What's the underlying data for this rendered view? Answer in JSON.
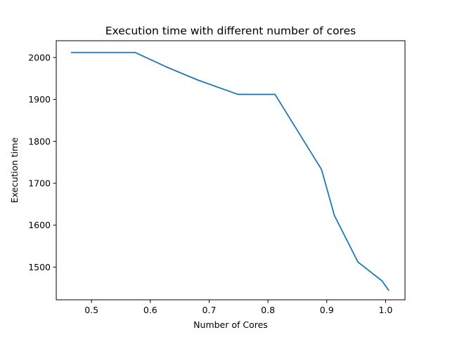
{
  "chart_data": {
    "type": "line",
    "title": "Execution time with different number of cores",
    "xlabel": "Number of Cores",
    "ylabel": "Execution time",
    "xlim": [
      0.44,
      1.033
    ],
    "ylim": [
      1422,
      2040
    ],
    "grid": false,
    "legend": "none",
    "xticks": [
      {
        "value": 0.5,
        "label": "0.5"
      },
      {
        "value": 0.6,
        "label": "0.6"
      },
      {
        "value": 0.7,
        "label": "0.7"
      },
      {
        "value": 0.8,
        "label": "0.8"
      },
      {
        "value": 0.9,
        "label": "0.9"
      },
      {
        "value": 1.0,
        "label": "1.0"
      }
    ],
    "yticks": [
      {
        "value": 1500,
        "label": "1500"
      },
      {
        "value": 1600,
        "label": "1600"
      },
      {
        "value": 1700,
        "label": "1700"
      },
      {
        "value": 1800,
        "label": "1800"
      },
      {
        "value": 1900,
        "label": "1900"
      },
      {
        "value": 2000,
        "label": "2000"
      }
    ],
    "series": [
      {
        "color": "#1f77b4",
        "x": [
          0.466,
          0.574,
          0.628,
          0.681,
          0.749,
          0.812,
          0.891,
          0.913,
          0.953,
          0.994,
          1.005
        ],
        "y": [
          2012,
          2012,
          1977,
          1946,
          1912,
          1912,
          1733,
          1623,
          1512,
          1467,
          1445
        ]
      }
    ]
  }
}
